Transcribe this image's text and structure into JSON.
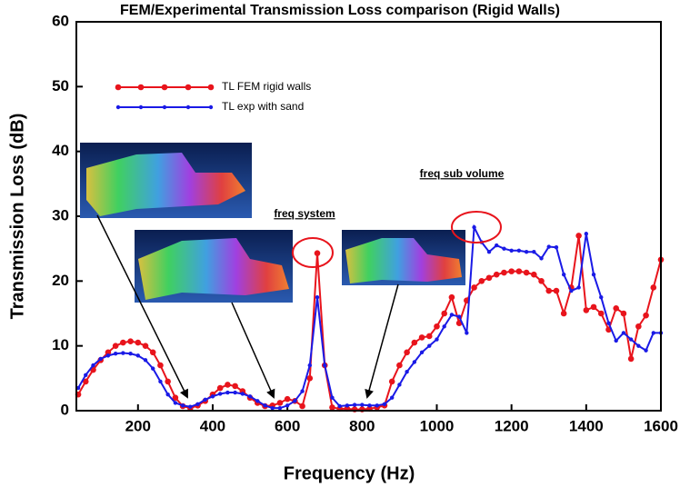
{
  "chart_data": {
    "type": "line",
    "title": "FEM/Experimental Transmission Loss comparison (Rigid Walls)",
    "x_label": "Frequency (Hz)",
    "y_label": "Transmission Loss (dB)",
    "x": [
      40,
      60,
      80,
      100,
      120,
      140,
      160,
      180,
      200,
      220,
      240,
      260,
      280,
      300,
      320,
      340,
      360,
      380,
      400,
      420,
      440,
      460,
      480,
      500,
      520,
      540,
      560,
      580,
      600,
      620,
      640,
      660,
      680,
      700,
      720,
      740,
      760,
      780,
      800,
      820,
      840,
      860,
      880,
      900,
      920,
      940,
      960,
      980,
      1000,
      1020,
      1040,
      1060,
      1080,
      1100,
      1120,
      1140,
      1160,
      1180,
      1200,
      1220,
      1240,
      1260,
      1280,
      1300,
      1320,
      1340,
      1360,
      1380,
      1400,
      1420,
      1440,
      1460,
      1480,
      1500,
      1520,
      1540,
      1560,
      1580,
      1600
    ],
    "series": [
      {
        "name": "TL FEM rigid walls",
        "color": "#e8141c",
        "values": [
          2.5,
          4.5,
          6.3,
          7.8,
          9,
          10,
          10.5,
          10.7,
          10.5,
          10,
          9,
          7,
          4.5,
          2,
          0.7,
          0.4,
          0.8,
          1.5,
          2.5,
          3.5,
          4,
          3.8,
          3,
          2,
          1.2,
          0.7,
          0.8,
          1.2,
          1.8,
          1.5,
          0.7,
          5,
          24.3,
          7,
          0.5,
          0.3,
          0.3,
          0.2,
          0.2,
          0.3,
          0.5,
          0.8,
          4.5,
          7,
          9,
          10.5,
          11.3,
          11.5,
          13,
          15,
          17.5,
          13.5,
          17,
          19,
          20,
          20.5,
          21,
          21.3,
          21.5,
          21.5,
          21.3,
          21,
          20,
          18.5,
          18.5,
          15,
          19,
          27,
          15.5,
          16,
          15,
          12.5,
          15.8,
          15,
          8,
          13,
          14.7,
          19,
          23.3
        ]
      },
      {
        "name": "TL exp with sand",
        "color": "#1a1ae6",
        "values": [
          3.5,
          5.5,
          7,
          8,
          8.5,
          8.8,
          8.9,
          8.8,
          8.5,
          7.8,
          6.5,
          4.5,
          2.5,
          1.2,
          0.8,
          0.6,
          1,
          1.7,
          2.2,
          2.6,
          2.8,
          2.8,
          2.6,
          2.2,
          1.5,
          0.8,
          0.4,
          0.4,
          0.8,
          1.5,
          3,
          7,
          17.5,
          7,
          2,
          0.7,
          0.8,
          0.9,
          0.9,
          0.8,
          0.8,
          1,
          2,
          4,
          6,
          7.5,
          9,
          10,
          11,
          13,
          14.8,
          14.5,
          12,
          28.3,
          26,
          24.5,
          25.5,
          25,
          24.7,
          24.7,
          24.5,
          24.5,
          23.5,
          25.3,
          25.2,
          21,
          18.5,
          19,
          27.3,
          21,
          17.5,
          13.5,
          10.8,
          12,
          11,
          10,
          9.3,
          12,
          12
        ]
      }
    ],
    "xlim": [
      35,
      1600
    ],
    "ylim": [
      0,
      60
    ],
    "xticks": [
      200,
      400,
      600,
      800,
      1000,
      1200,
      1400,
      1600
    ],
    "yticks": [
      0,
      10,
      20,
      30,
      40,
      50,
      60
    ],
    "annotations": [
      "freq system",
      "freq sub volume"
    ]
  }
}
